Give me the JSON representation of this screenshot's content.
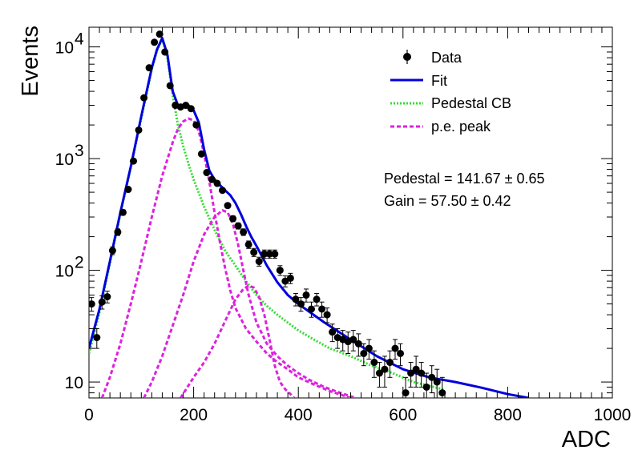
{
  "chart_data": {
    "type": "scatter",
    "xlabel": "ADC",
    "ylabel": "Events",
    "xlim": [
      0,
      1000
    ],
    "ylim": [
      7.2,
      15000
    ],
    "y_scale": "log",
    "x_ticks": [
      0,
      200,
      400,
      600,
      800,
      1000
    ],
    "x_tick_labels": [
      "0",
      "200",
      "400",
      "600",
      "800",
      "1000"
    ],
    "y_tick_labels": [
      {
        "value": 10,
        "base": "10",
        "exp": ""
      },
      {
        "value": 100,
        "base": "10",
        "exp": "2"
      },
      {
        "value": 1000,
        "base": "10",
        "exp": "3"
      },
      {
        "value": 10000,
        "base": "10",
        "exp": "4"
      }
    ],
    "legend_position": "top-right",
    "legend": [
      {
        "label": "Data",
        "style": "marker",
        "color": "#000000"
      },
      {
        "label": "Fit",
        "style": "solid",
        "color": "#0000dd"
      },
      {
        "label": "Pedestal CB",
        "style": "dotted",
        "color": "#33dd33"
      },
      {
        "label": "p.e. peak",
        "style": "dashed",
        "color": "#dd22dd"
      }
    ],
    "annotations": [
      "Pedestal = 141.67 ± 0.65",
      "Gain = 57.50 ± 0.42"
    ],
    "series": [
      {
        "name": "Data",
        "kind": "points",
        "color": "#000000",
        "x": [
          5,
          15,
          25,
          35,
          45,
          55,
          65,
          75,
          85,
          95,
          105,
          115,
          125,
          135,
          145,
          155,
          165,
          175,
          185,
          195,
          205,
          215,
          225,
          235,
          245,
          255,
          265,
          275,
          285,
          295,
          305,
          315,
          325,
          335,
          345,
          355,
          365,
          375,
          385,
          395,
          405,
          415,
          425,
          435,
          445,
          455,
          465,
          475,
          485,
          495,
          505,
          515,
          525,
          535,
          545,
          555,
          565,
          575,
          585,
          595,
          605,
          615,
          625,
          635,
          645,
          655,
          665,
          675
        ],
        "y": [
          50,
          25,
          52,
          58,
          150,
          220,
          330,
          530,
          950,
          1800,
          3500,
          6500,
          11000,
          13000,
          9000,
          4500,
          3000,
          2900,
          3000,
          2800,
          2000,
          1100,
          750,
          650,
          600,
          520,
          380,
          290,
          250,
          220,
          170,
          145,
          120,
          140,
          140,
          140,
          100,
          80,
          85,
          55,
          50,
          60,
          45,
          55,
          45,
          40,
          28,
          25,
          24,
          23,
          24,
          22,
          18,
          20,
          15,
          12,
          13,
          15,
          20,
          18,
          8,
          12,
          13,
          12,
          9,
          11,
          10,
          8
        ],
        "y_err": [
          7,
          5,
          7,
          7,
          12,
          15,
          18,
          23,
          31,
          42,
          59,
          81,
          105,
          114,
          95,
          67,
          55,
          54,
          55,
          53,
          45,
          33,
          27,
          25,
          24,
          23,
          19,
          17,
          16,
          15,
          13,
          12,
          11,
          12,
          12,
          12,
          10,
          9,
          9,
          7,
          7,
          8,
          7,
          7,
          7,
          6,
          5,
          5,
          5,
          5,
          5,
          5,
          4,
          4,
          4,
          3,
          4,
          4,
          4,
          4,
          3,
          3,
          4,
          3,
          3,
          3,
          3,
          3
        ]
      },
      {
        "name": "Fit",
        "kind": "line",
        "color": "#0000dd",
        "x": [
          0,
          20,
          40,
          60,
          80,
          100,
          120,
          130,
          140,
          150,
          160,
          170,
          180,
          190,
          200,
          210,
          220,
          230,
          240,
          250,
          260,
          270,
          280,
          290,
          300,
          310,
          320,
          340,
          360,
          380,
          400,
          450,
          500,
          550,
          600,
          650,
          700,
          750,
          800,
          840
        ],
        "y": [
          20,
          45,
          120,
          330,
          850,
          2400,
          6500,
          9500,
          12000,
          8500,
          4000,
          3000,
          2950,
          3000,
          2700,
          2100,
          1200,
          780,
          650,
          580,
          520,
          470,
          400,
          320,
          250,
          200,
          165,
          110,
          78,
          60,
          50,
          34,
          24,
          17,
          13,
          11,
          10,
          8.9,
          7.8,
          7.2
        ]
      },
      {
        "name": "Pedestal CB",
        "kind": "line",
        "color": "#33dd33",
        "x": [
          0,
          20,
          40,
          60,
          80,
          100,
          120,
          130,
          140,
          150,
          160,
          170,
          180,
          190,
          200,
          220,
          240,
          260,
          280,
          300,
          320,
          340,
          360,
          380,
          400,
          430,
          460,
          500,
          540,
          580,
          620,
          660,
          680
        ],
        "y": [
          18,
          42,
          115,
          320,
          830,
          2300,
          6300,
          9300,
          11800,
          8000,
          3700,
          2000,
          1300,
          900,
          650,
          370,
          230,
          150,
          110,
          80,
          60,
          48,
          40,
          34,
          29,
          24,
          20,
          17,
          14,
          12,
          10,
          9,
          8.5
        ]
      },
      {
        "name": "p.e. peak 1",
        "kind": "line",
        "color": "#dd22dd",
        "x": [
          25,
          40,
          60,
          80,
          100,
          120,
          140,
          160,
          170,
          180,
          190,
          200,
          210,
          220,
          230,
          240,
          250,
          260,
          270,
          280,
          300,
          320,
          340,
          360,
          380,
          400,
          430,
          460,
          500
        ],
        "y": [
          7.2,
          11,
          22,
          50,
          120,
          300,
          700,
          1400,
          1850,
          2150,
          2280,
          2200,
          1750,
          1100,
          620,
          330,
          180,
          105,
          66,
          46,
          30,
          23,
          18,
          15,
          13,
          11,
          9.5,
          8.3,
          7.2
        ]
      },
      {
        "name": "p.e. peak 2",
        "kind": "line",
        "color": "#dd22dd",
        "x": [
          105,
          120,
          140,
          160,
          180,
          200,
          220,
          240,
          255,
          265,
          275,
          285,
          295,
          305,
          320,
          340,
          360,
          380,
          400,
          420,
          450,
          480,
          510
        ],
        "y": [
          7.2,
          10,
          17,
          32,
          60,
          120,
          210,
          300,
          345,
          330,
          260,
          170,
          100,
          60,
          34,
          22,
          17,
          14,
          12,
          10.5,
          9,
          8,
          7.2
        ]
      },
      {
        "name": "p.e. peak 3",
        "kind": "line",
        "color": "#dd22dd",
        "x": [
          175,
          200,
          220,
          240,
          260,
          280,
          295,
          305,
          315,
          325,
          335,
          345,
          355,
          365,
          375,
          385,
          392
        ],
        "y": [
          7.2,
          11,
          15,
          22,
          35,
          55,
          68,
          73,
          70,
          58,
          40,
          24,
          14,
          10,
          8.6,
          7.8,
          7.2
        ]
      }
    ]
  }
}
